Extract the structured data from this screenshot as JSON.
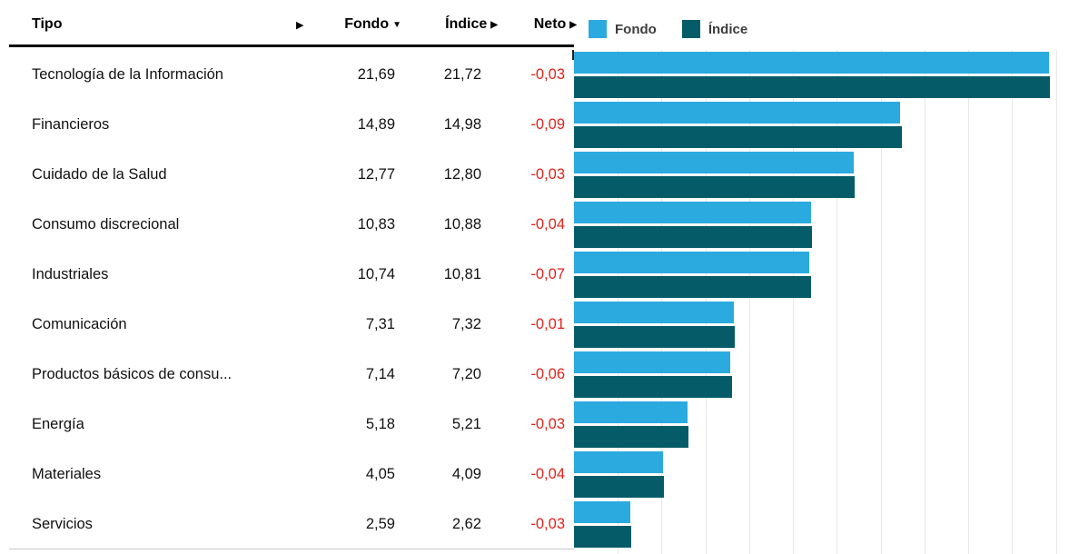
{
  "table": {
    "header": {
      "tipo": {
        "label": "Tipo",
        "sort_icon": "▶"
      },
      "columns": [
        {
          "label": "Fondo",
          "sort_icon": "▼"
        },
        {
          "label": "Índice",
          "sort_icon": "▶"
        },
        {
          "label": "Neto",
          "sort_icon": "▶"
        }
      ]
    },
    "rows": [
      {
        "tipo": "Tecnología de la Información",
        "fondo": "21,69",
        "indice": "21,72",
        "neto": "-0,03"
      },
      {
        "tipo": "Financieros",
        "fondo": "14,89",
        "indice": "14,98",
        "neto": "-0,09"
      },
      {
        "tipo": "Cuidado de la Salud",
        "fondo": "12,77",
        "indice": "12,80",
        "neto": "-0,03"
      },
      {
        "tipo": "Consumo discrecional",
        "fondo": "10,83",
        "indice": "10,88",
        "neto": "-0,04"
      },
      {
        "tipo": "Industriales",
        "fondo": "10,74",
        "indice": "10,81",
        "neto": "-0,07"
      },
      {
        "tipo": "Comunicación",
        "fondo": "7,31",
        "indice": "7,32",
        "neto": "-0,01"
      },
      {
        "tipo": "Productos básicos de consu...",
        "fondo": "7,14",
        "indice": "7,20",
        "neto": "-0,06"
      },
      {
        "tipo": "Energía",
        "fondo": "5,18",
        "indice": "5,21",
        "neto": "-0,03"
      },
      {
        "tipo": "Materiales",
        "fondo": "4,05",
        "indice": "4,09",
        "neto": "-0,04"
      },
      {
        "tipo": "Servicios",
        "fondo": "2,59",
        "indice": "2,62",
        "neto": "-0,03"
      }
    ]
  },
  "legend": {
    "items": [
      {
        "label": "Fondo",
        "color": "#2baae0"
      },
      {
        "label": "Índice",
        "color": "#055c68"
      }
    ]
  },
  "chart_data": {
    "type": "bar",
    "orientation": "horizontal",
    "categories": [
      "Tecnología de la Información",
      "Financieros",
      "Cuidado de la Salud",
      "Consumo discrecional",
      "Industriales",
      "Comunicación",
      "Productos básicos de consu...",
      "Energía",
      "Materiales",
      "Servicios"
    ],
    "series": [
      {
        "name": "Fondo",
        "color": "#2baae0",
        "values": [
          21.69,
          14.89,
          12.77,
          10.83,
          10.74,
          7.31,
          7.14,
          5.18,
          4.05,
          2.59
        ]
      },
      {
        "name": "Índice",
        "color": "#055c68",
        "values": [
          21.72,
          14.98,
          12.8,
          10.88,
          10.81,
          7.32,
          7.2,
          5.21,
          4.09,
          2.62
        ]
      }
    ],
    "xlim": [
      0,
      22.6
    ],
    "grid_step": 2,
    "grid": true,
    "legend_position": "top",
    "title": ""
  },
  "colors": {
    "negative": "#e2231a",
    "gridline": "#e8e8e8",
    "header_rule": "#000000",
    "bottom_rule": "#c8c8c8",
    "text": "#111111"
  }
}
